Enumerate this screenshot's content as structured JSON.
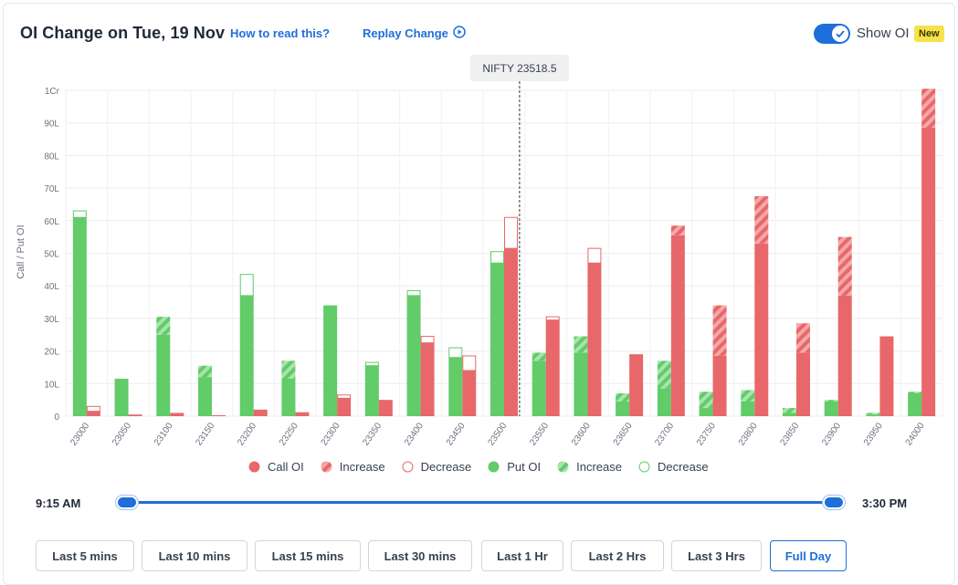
{
  "header": {
    "title": "OI Change on Tue, 19 Nov",
    "how_to_read": "How to read this?",
    "replay_change": "Replay Change",
    "show_oi_label": "Show OI",
    "show_oi_enabled": true,
    "new_badge": "New"
  },
  "legend": {
    "call_oi": "Call OI",
    "call_increase": "Increase",
    "call_decrease": "Decrease",
    "put_oi": "Put OI",
    "put_increase": "Increase",
    "put_decrease": "Decrease"
  },
  "slider": {
    "start_time": "9:15 AM",
    "end_time": "3:30 PM"
  },
  "time_buttons": [
    "Last 5 mins",
    "Last 10 mins",
    "Last 15 mins",
    "Last 30 mins",
    "Last 1 Hr",
    "Last 2 Hrs",
    "Last 3 Hrs",
    "Full Day"
  ],
  "active_button": "Full Day",
  "colors": {
    "call": "#e8676a",
    "put": "#61cc68",
    "accent": "#1e6fd9",
    "spot_line": "#333333"
  },
  "chart_data": {
    "type": "bar",
    "ylabel": "Call / Put OI",
    "ylim": [
      0,
      100
    ],
    "y_unit": "Lakh",
    "y_tick_labels": [
      "0",
      "10L",
      "20L",
      "30L",
      "40L",
      "50L",
      "60L",
      "70L",
      "80L",
      "90L",
      "1Cr"
    ],
    "spot_label": "NIFTY 23518.5",
    "spot_value": 23518.5,
    "categories": [
      "23000",
      "23050",
      "23100",
      "23150",
      "23200",
      "23250",
      "23300",
      "23350",
      "23400",
      "23450",
      "23500",
      "23550",
      "23600",
      "23650",
      "23700",
      "23750",
      "23800",
      "23850",
      "23900",
      "23950",
      "24000"
    ],
    "series": [
      {
        "name": "Put OI",
        "values": [
          61,
          11.5,
          25,
          12,
          37,
          11.5,
          34,
          15.5,
          37,
          18,
          47,
          17,
          19.5,
          4.5,
          8.5,
          2.5,
          4.5,
          1,
          4.5,
          0.5,
          7
        ],
        "increase": [
          0,
          0,
          5.5,
          3.5,
          0,
          5.5,
          0,
          0,
          0,
          0,
          0,
          2.5,
          5,
          2.5,
          8.5,
          5,
          3.5,
          1.5,
          0.5,
          0.5,
          0.5
        ],
        "decrease": [
          2,
          0,
          0,
          0,
          6.5,
          0,
          0,
          1,
          1.5,
          3,
          3.5,
          0,
          0,
          0,
          0,
          0,
          0,
          0,
          0,
          0,
          0
        ]
      },
      {
        "name": "Call OI",
        "values": [
          1.5,
          0.5,
          1,
          0.3,
          2,
          1.2,
          5.5,
          5,
          22.5,
          14,
          51.5,
          29.5,
          47,
          19,
          55.5,
          18.5,
          53,
          19.5,
          37,
          24.5,
          88.5
        ],
        "increase": [
          0,
          0,
          0,
          0,
          0,
          0,
          0,
          0,
          0,
          0,
          0,
          0,
          0,
          0,
          3,
          15.5,
          14.5,
          9,
          18,
          0,
          12
        ],
        "decrease": [
          1.5,
          0,
          0,
          0,
          0,
          0,
          1,
          0,
          2,
          4.5,
          9.5,
          1,
          4.5,
          0,
          0,
          0,
          0,
          0,
          0,
          0,
          0
        ]
      }
    ]
  }
}
